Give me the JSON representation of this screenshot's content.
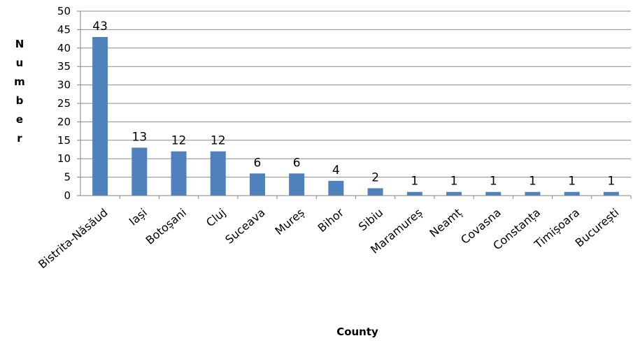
{
  "chart_data": {
    "type": "bar",
    "categories": [
      "Bistrita-Năsăud",
      "Iași",
      "Botoșani",
      "Cluj",
      "Suceava",
      "Mureș",
      "Bihor",
      "Sibiu",
      "Maramureș",
      "Neamț",
      "Covasna",
      "Constanța",
      "Timișoara",
      "București"
    ],
    "values": [
      43,
      13,
      12,
      12,
      6,
      6,
      4,
      2,
      1,
      1,
      1,
      1,
      1,
      1
    ],
    "xlabel": "County",
    "ylabel": "Number",
    "ylim": [
      0,
      50
    ],
    "yticks": [
      0,
      5,
      10,
      15,
      20,
      25,
      30,
      35,
      40,
      45,
      50
    ],
    "grid": true,
    "legend": "none",
    "bar_color": "#4F81BD",
    "data_labels": true
  }
}
